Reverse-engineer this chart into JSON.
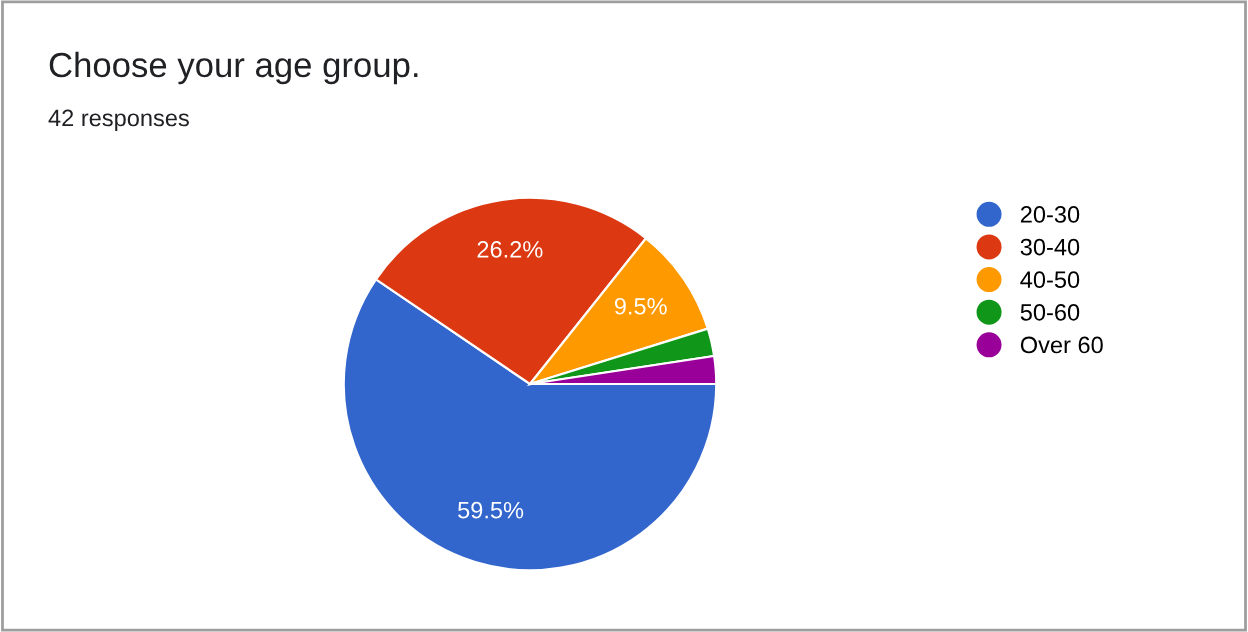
{
  "chart_data": {
    "type": "pie",
    "title": "Choose your age group.",
    "subtitle": "42 responses",
    "categories": [
      "20-30",
      "30-40",
      "40-50",
      "50-60",
      "Over 60"
    ],
    "values": [
      59.5,
      26.2,
      9.5,
      2.4,
      2.4
    ],
    "value_labels": [
      "59.5%",
      "26.2%",
      "9.5%",
      null,
      null
    ],
    "colors": [
      "#3366cc",
      "#dc3912",
      "#ff9900",
      "#109618",
      "#990099"
    ],
    "legend": "right"
  }
}
